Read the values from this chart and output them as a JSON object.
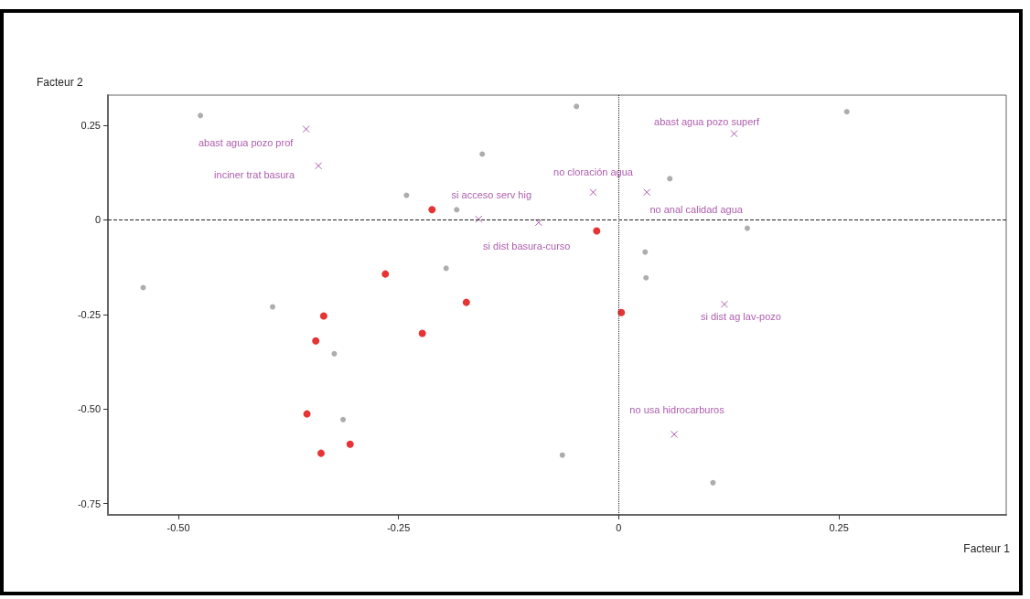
{
  "chart_data": {
    "type": "scatter",
    "xlabel": "Facteur 1",
    "ylabel": "Facteur 2",
    "xlim": [
      -0.58,
      0.44
    ],
    "ylim": [
      -0.78,
      0.33
    ],
    "xticks": [
      {
        "value": -0.5,
        "label": "-0.50"
      },
      {
        "value": -0.25,
        "label": "-0.25"
      },
      0,
      0.25
    ],
    "yticks": [
      0.25,
      0,
      -0.25,
      {
        "value": -0.5,
        "label": "-0.50"
      },
      -0.75
    ],
    "grid": false,
    "ref_lines": [
      {
        "axis": "x",
        "value": 0,
        "line_style": "dotted"
      },
      {
        "axis": "y",
        "value": 0,
        "line_style": "dashed"
      }
    ],
    "series": [
      {
        "color": "#e00000",
        "marker": "circle",
        "x": [
          -0.212,
          -0.265,
          -0.335,
          -0.344,
          -0.223,
          -0.173,
          -0.354,
          -0.338,
          -0.305,
          -0.025,
          0.003
        ],
        "values": [
          0.027,
          -0.143,
          -0.254,
          -0.32,
          -0.3,
          -0.218,
          -0.513,
          -0.617,
          -0.593,
          -0.029,
          -0.245
        ]
      },
      {
        "color": "#993399",
        "marker": "cross",
        "x": [
          -0.355,
          -0.341,
          -0.159,
          -0.091,
          -0.029,
          0.032,
          0.131,
          0.12,
          0.063
        ],
        "values": [
          0.24,
          0.143,
          0.002,
          -0.007,
          0.073,
          0.073,
          0.228,
          -0.223,
          -0.567
        ]
      },
      {
        "color": "#999999",
        "marker": "circle",
        "x": [
          -0.475,
          -0.155,
          -0.241,
          -0.184,
          -0.196,
          -0.54,
          -0.393,
          -0.323,
          -0.313,
          -0.048,
          0.259,
          0.058,
          0.146,
          0.03,
          0.031,
          -0.064,
          0.107
        ],
        "values": [
          0.276,
          0.174,
          0.065,
          0.027,
          -0.128,
          -0.179,
          -0.23,
          -0.354,
          -0.528,
          0.3,
          0.286,
          0.109,
          -0.022,
          -0.085,
          -0.153,
          -0.622,
          -0.695
        ]
      }
    ],
    "annotations": [
      {
        "text": "abast agua pozo prof",
        "x": -0.355,
        "y": 0.24
      },
      {
        "text": "inciner trat basura",
        "x": -0.341,
        "y": 0.143
      },
      {
        "text": "si acceso serv hig",
        "x": -0.159,
        "y": 0.002
      },
      {
        "text": "si dist basura-curso",
        "x": -0.091,
        "y": -0.007
      },
      {
        "text": "no cloración agua",
        "x": -0.029,
        "y": 0.073
      },
      {
        "text": "no anal calidad agua",
        "x": 0.032,
        "y": 0.073
      },
      {
        "text": "abast agua pozo superf",
        "x": 0.131,
        "y": 0.228
      },
      {
        "text": "si dist ag lav-pozo",
        "x": 0.12,
        "y": -0.223
      },
      {
        "text": "no usa hidrocarburos",
        "x": 0.063,
        "y": -0.567
      }
    ]
  }
}
